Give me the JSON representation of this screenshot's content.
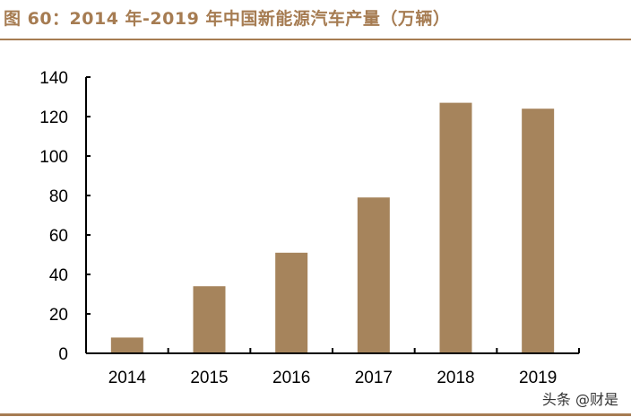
{
  "header": {
    "title": "图 60：2014 年-2019 年中国新能源汽车产量（万辆）"
  },
  "watermark": "头条 @财是",
  "colors": {
    "accent": "#a67c52",
    "bar": "#a6845c",
    "axis": "#000000"
  },
  "chart_data": {
    "type": "bar",
    "title": "2014 年-2019 年中国新能源汽车产量（万辆）",
    "xlabel": "",
    "ylabel": "",
    "categories": [
      "2014",
      "2015",
      "2016",
      "2017",
      "2018",
      "2019"
    ],
    "values": [
      8,
      34,
      51,
      79,
      127,
      124
    ],
    "ylim": [
      0,
      140
    ],
    "yticks": [
      "0",
      "20",
      "40",
      "60",
      "80",
      "100",
      "120",
      "140"
    ],
    "grid": false,
    "legend": null
  }
}
